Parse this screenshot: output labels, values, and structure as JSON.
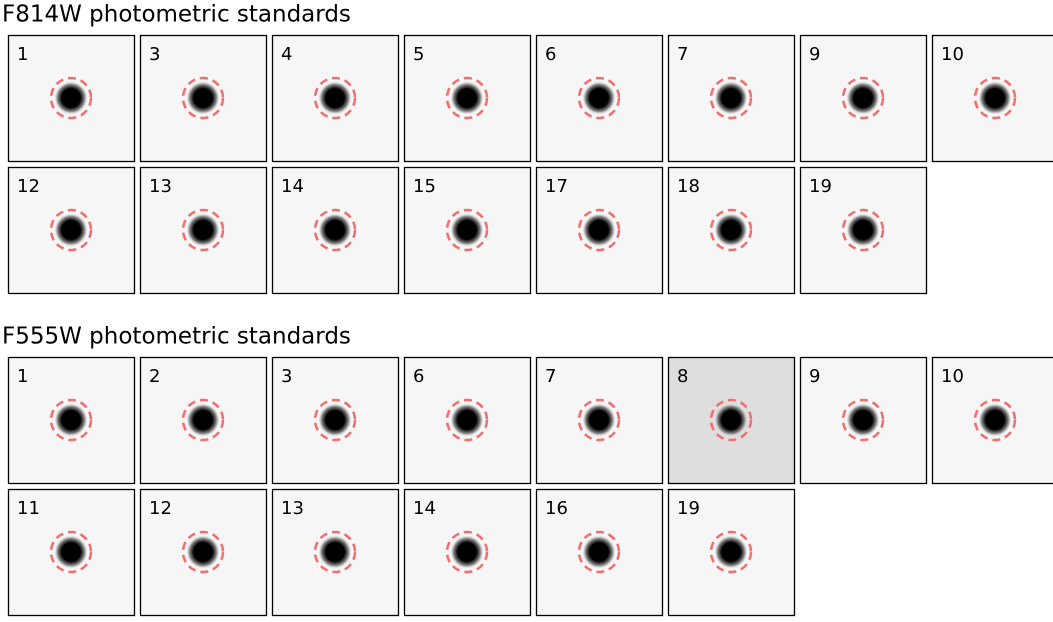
{
  "sections": [
    {
      "title": "F814W photometric standards",
      "panels": [
        "1",
        "3",
        "4",
        "5",
        "6",
        "7",
        "9",
        "10",
        "12",
        "13",
        "14",
        "15",
        "17",
        "18",
        "19"
      ]
    },
    {
      "title": "F555W photometric standards",
      "panels": [
        "1",
        "2",
        "3",
        "6",
        "7",
        "8",
        "9",
        "10",
        "11",
        "12",
        "13",
        "14",
        "16",
        "19"
      ]
    }
  ]
}
